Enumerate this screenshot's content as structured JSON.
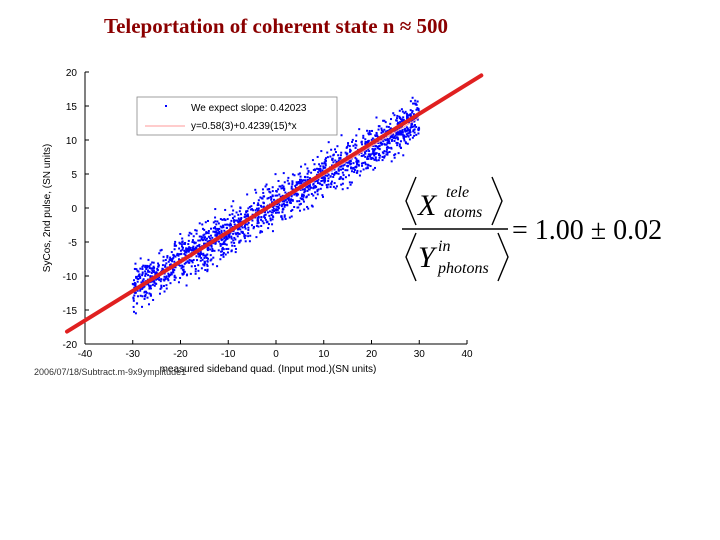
{
  "slide_title": "Teleportation of coherent state n ≈ 500",
  "chart_data": {
    "type": "scatter",
    "title": "",
    "xlabel": "measured sideband quad. (Input mod.)(SN units)",
    "ylabel": "SyCos, 2nd pulse, (SN units)",
    "xlim": [
      -40,
      40
    ],
    "ylim": [
      -20,
      20
    ],
    "xticks": [
      "-40",
      "-30",
      "-20",
      "-10",
      "0",
      "10",
      "20",
      "30",
      "40"
    ],
    "yticks": [
      "20",
      "15",
      "10",
      "5",
      "0",
      "-5",
      "-10",
      "-15",
      "-20"
    ],
    "grid": false,
    "legend_position": "top-left",
    "series": [
      {
        "name": "We expect slope: 0.42023",
        "kind": "points",
        "color": "#0000ff",
        "x_range": [
          -30,
          30
        ],
        "slope": 0.42,
        "intercept": 0.58
      },
      {
        "name": "y=0.58(3)+0.4239(15)*x",
        "kind": "fit-line",
        "color": "#ff9999",
        "slope": 0.4239,
        "intercept": 0.58
      }
    ],
    "overlay_line": {
      "color": "#e02020",
      "from": [
        -40,
        -17
      ],
      "to": [
        43,
        19.5
      ]
    }
  },
  "formula": {
    "numerator_base": "X",
    "numerator_sup": "tele",
    "numerator_sub": "atoms",
    "denominator_base": "Y",
    "denominator_sup": "in",
    "denominator_sub": "photons",
    "result": "= 1.00 ± 0.02"
  },
  "file_stamp": "2006/07/18/Subtract.m-9x9ymplitude1"
}
